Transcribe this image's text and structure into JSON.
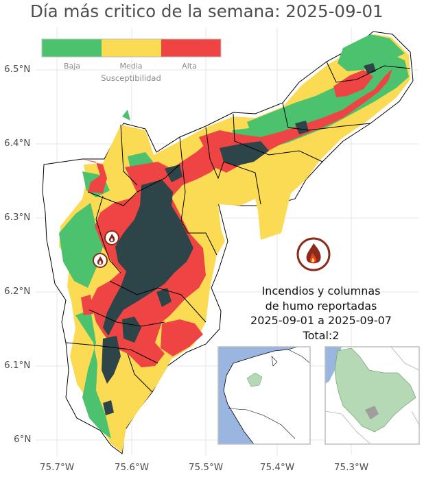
{
  "title": "Día más critico de la semana: 2025-09-01",
  "legend": {
    "title": "Susceptibilidad",
    "items": [
      {
        "label": "Baja",
        "color": "#4dc26e"
      },
      {
        "label": "Media",
        "color": "#fbdb54"
      },
      {
        "label": "Alta",
        "color": "#ef4444"
      }
    ]
  },
  "axes": {
    "y_ticks": [
      "6.5°N",
      "6.4°N",
      "6.3°N",
      "6.2°N",
      "6.1°N",
      "6°N"
    ],
    "x_ticks": [
      "75.7°W",
      "75.6°W",
      "75.5°W",
      "75.4°W",
      "75.3°W"
    ]
  },
  "fire_summary": {
    "line1": "Incendios y columnas",
    "line2": "de humo reportadas",
    "line3": "2025-09-01 a 2025-09-07",
    "line4": "Total:2"
  },
  "colors": {
    "high_density": "#2d4548",
    "fire_marker": "#8b2a1a",
    "inset_sea": "#9ab6e0",
    "inset_region": "#b5d9b4"
  },
  "icons": [
    "fire-marker-icon",
    "fire-legend-icon"
  ]
}
